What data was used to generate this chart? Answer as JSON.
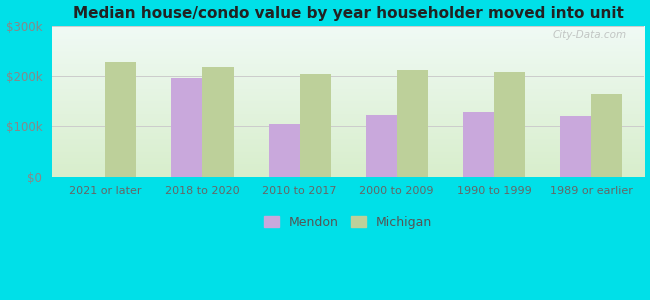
{
  "title": "Median house/condo value by year householder moved into unit",
  "categories": [
    "2021 or later",
    "2018 to 2020",
    "2010 to 2017",
    "2000 to 2009",
    "1990 to 1999",
    "1989 or earlier"
  ],
  "mendon_values": [
    null,
    197000,
    105000,
    122000,
    128000,
    120000
  ],
  "michigan_values": [
    228000,
    218000,
    204000,
    213000,
    208000,
    165000
  ],
  "mendon_color": "#c9a8dc",
  "michigan_color": "#bdd09a",
  "background_color": "#00e0e8",
  "plot_bg_top": "#f0faf5",
  "plot_bg_bottom": "#d8eecc",
  "ylim": [
    0,
    300000
  ],
  "yticks": [
    0,
    100000,
    200000,
    300000
  ],
  "ytick_labels": [
    "$0",
    "$100k",
    "$200k",
    "$300k"
  ],
  "bar_width": 0.32,
  "legend_mendon": "Mendon",
  "legend_michigan": "Michigan",
  "watermark": "City-Data.com"
}
